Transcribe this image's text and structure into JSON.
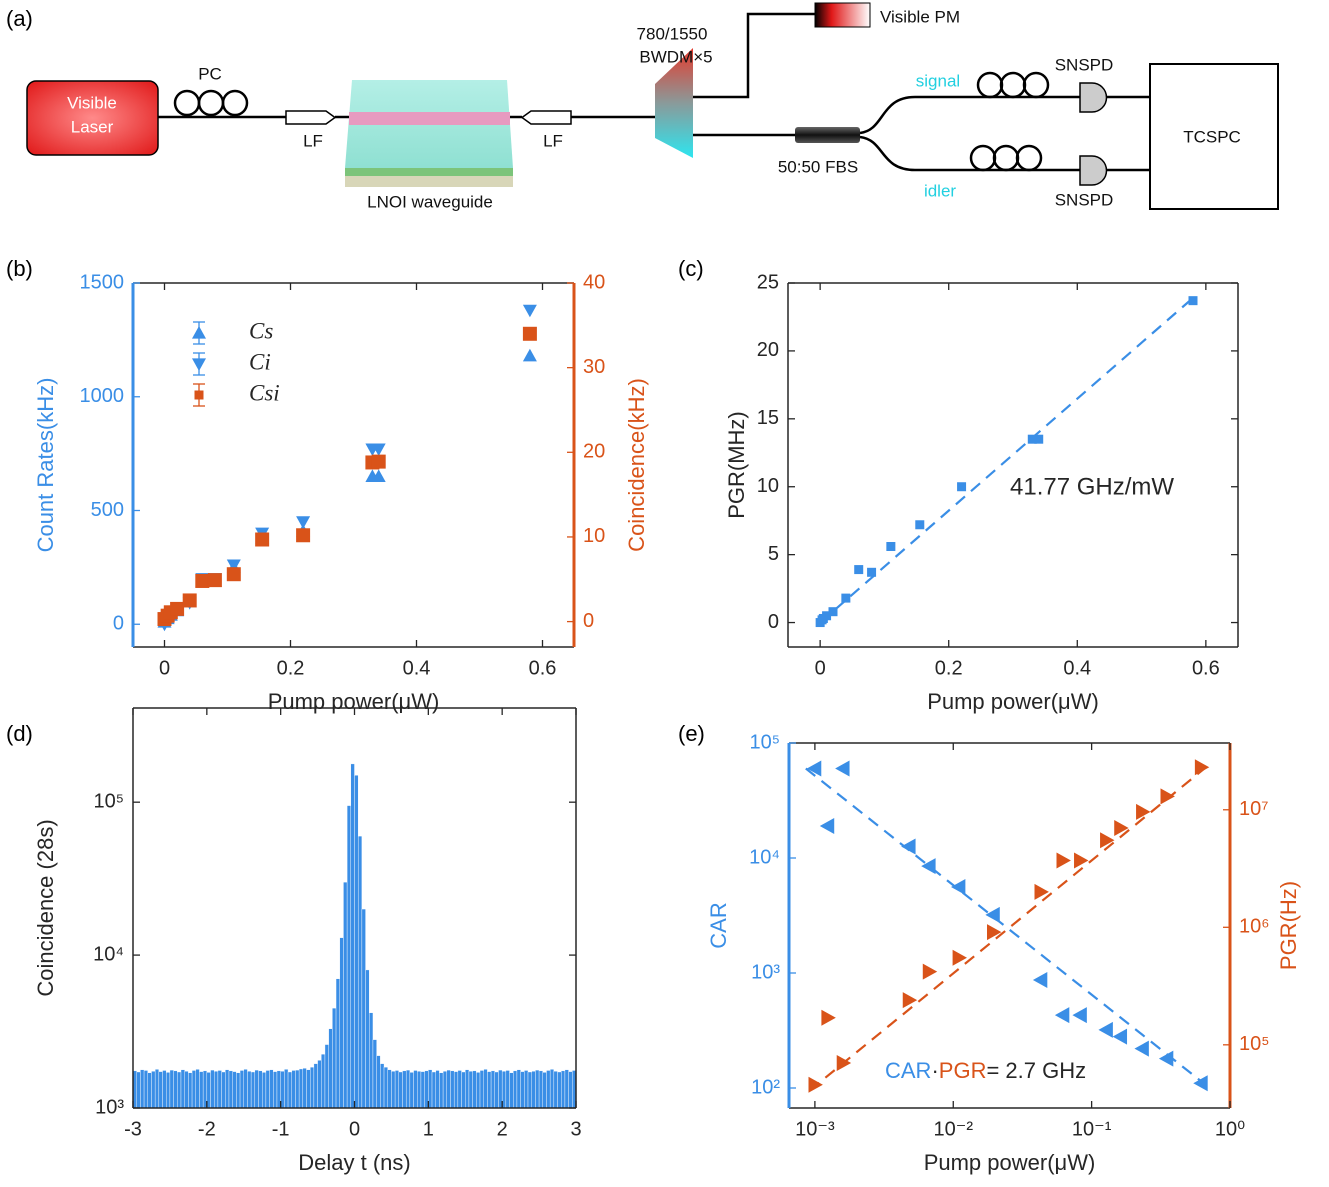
{
  "diagram": {
    "panel_label": "(a)",
    "laser": [
      "Visible",
      "Laser"
    ],
    "pc": "PC",
    "lf": [
      "LF",
      "LF"
    ],
    "waveguide": "LNOI waveguide",
    "bwdm": [
      "780/1550",
      "BWDM×5"
    ],
    "power_meter": "Visible PM",
    "splitter": "50:50 FBS",
    "arms": [
      "signal",
      "idler"
    ],
    "detectors": [
      "SNSPD",
      "SNSPD"
    ],
    "counter": "TCSPC"
  },
  "chart_data": [
    {
      "type": "scatter",
      "panel_label": "(b)",
      "xlabel": "Pump power(μW)",
      "ylabel": "Count Rates(kHz)",
      "y2label": "Coincidence(kHz)",
      "ycolor": "#3a8ee6",
      "y2color": "#d95319",
      "legend": "upper left",
      "xlim": [
        -0.05,
        0.65
      ],
      "xticks": [
        0,
        0.2,
        0.4,
        0.6
      ],
      "ylim": [
        -100,
        1500
      ],
      "yticks": [
        0,
        500,
        1000,
        1500
      ],
      "y2lim": [
        -3,
        40
      ],
      "y2ticks": [
        0,
        10,
        20,
        30,
        40
      ],
      "x": [
        0,
        0.005,
        0.01,
        0.02,
        0.04,
        0.06,
        0.08,
        0.11,
        0.155,
        0.22,
        0.33,
        0.34,
        0.58
      ],
      "series": [
        {
          "name": "Cs",
          "color": "#3a8ee6",
          "marker": "triangle-up",
          "values": [
            10,
            25,
            40,
            60,
            100,
            190,
            190,
            250,
            380,
            410,
            650,
            650,
            1180
          ]
        },
        {
          "name": "Ci",
          "color": "#3a8ee6",
          "marker": "triangle-down",
          "values": [
            0,
            30,
            45,
            65,
            95,
            200,
            200,
            260,
            400,
            450,
            770,
            770,
            1380
          ]
        },
        {
          "name": "Csi",
          "color": "#d95319",
          "marker": "square",
          "axis": "y2",
          "values": [
            0.3,
            0.7,
            1.1,
            1.5,
            2.5,
            4.8,
            4.9,
            5.6,
            9.7,
            10.2,
            18.8,
            18.9,
            34
          ]
        }
      ]
    },
    {
      "type": "scatter",
      "panel_label": "(c)",
      "xlabel": "Pump power(μW)",
      "ylabel": "PGR(MHz)",
      "annotation": "41.77 GHz/mW",
      "xlim": [
        -0.05,
        0.65
      ],
      "xticks": [
        0,
        0.2,
        0.4,
        0.6
      ],
      "ylim": [
        -1.8,
        25
      ],
      "yticks": [
        0,
        5,
        10,
        15,
        20,
        25
      ],
      "x": [
        0,
        0.003,
        0.005,
        0.01,
        0.02,
        0.04,
        0.06,
        0.08,
        0.11,
        0.155,
        0.22,
        0.33,
        0.34,
        0.58
      ],
      "series": [
        {
          "color": "#3a8ee6",
          "marker": "square",
          "values": [
            0,
            0.2,
            0.3,
            0.5,
            0.8,
            1.8,
            3.9,
            3.7,
            5.6,
            7.2,
            10,
            13.5,
            13.5,
            23.7
          ],
          "fit": {
            "x": [
              0,
              0.58
            ],
            "values": [
              0,
              23.9
            ]
          }
        }
      ]
    },
    {
      "type": "histogram",
      "panel_label": "(d)",
      "xlabel": "Delay t (ns)",
      "ylabel": "Coincidence (28s)",
      "color": "#3a8ee6",
      "ylog": true,
      "xlim": [
        -3,
        3
      ],
      "xticks": [
        -3,
        -2,
        -1,
        0,
        1,
        2,
        3
      ],
      "ylim": [
        1000,
        413000
      ],
      "yticks": [
        {
          "value": 1000,
          "label": "10³"
        },
        {
          "value": 10000,
          "label": "10⁴"
        },
        {
          "value": 100000,
          "label": "10⁵"
        }
      ],
      "bins": [
        -3,
        -2.95,
        -2.9,
        -2.85,
        -2.8,
        -2.75,
        -2.7,
        -2.65,
        -2.6,
        -2.55,
        -2.5,
        -2.45,
        -2.4,
        -2.35,
        -2.3,
        -2.25,
        -2.2,
        -2.15,
        -2.1,
        -2.05,
        -2,
        -1.95,
        -1.9,
        -1.85,
        -1.8,
        -1.75,
        -1.7,
        -1.65,
        -1.6,
        -1.55,
        -1.5,
        -1.45,
        -1.4,
        -1.35,
        -1.3,
        -1.25,
        -1.2,
        -1.15,
        -1.1,
        -1.05,
        -1,
        -0.95,
        -0.9,
        -0.85,
        -0.8,
        -0.75,
        -0.7,
        -0.65,
        -0.6,
        -0.55,
        -0.5,
        -0.45,
        -0.4,
        -0.35,
        -0.3,
        -0.25,
        -0.2,
        -0.15,
        -0.1,
        -0.05,
        0,
        0.05,
        0.1,
        0.15,
        0.2,
        0.25,
        0.3,
        0.35,
        0.4,
        0.45,
        0.5,
        0.55,
        0.6,
        0.65,
        0.7,
        0.75,
        0.8,
        0.85,
        0.9,
        0.95,
        1,
        1.05,
        1.1,
        1.15,
        1.2,
        1.25,
        1.3,
        1.35,
        1.4,
        1.45,
        1.5,
        1.55,
        1.6,
        1.65,
        1.7,
        1.75,
        1.8,
        1.85,
        1.9,
        1.95,
        2,
        2.05,
        2.1,
        2.15,
        2.2,
        2.25,
        2.3,
        2.35,
        2.4,
        2.45,
        2.5,
        2.55,
        2.6,
        2.65,
        2.7,
        2.75,
        2.8,
        2.85,
        2.9,
        2.95,
        3
      ],
      "values": [
        1750,
        1720,
        1780,
        1760,
        1700,
        1740,
        1790,
        1730,
        1760,
        1710,
        1770,
        1750,
        1720,
        1780,
        1740,
        1700,
        1760,
        1790,
        1730,
        1750,
        1710,
        1770,
        1740,
        1760,
        1720,
        1780,
        1750,
        1730,
        1700,
        1760,
        1790,
        1740,
        1720,
        1770,
        1750,
        1710,
        1760,
        1780,
        1730,
        1750,
        1740,
        1790,
        1720,
        1760,
        1770,
        1800,
        1820,
        1780,
        1850,
        1950,
        2050,
        2250,
        2600,
        3300,
        4500,
        7000,
        13000,
        30000,
        95000,
        178000,
        150000,
        60000,
        20000,
        8000,
        4200,
        2800,
        2200,
        1950,
        1850,
        1780,
        1740,
        1760,
        1720,
        1750,
        1770,
        1710,
        1760,
        1740,
        1730,
        1750,
        1780,
        1720,
        1760,
        1700,
        1740,
        1770,
        1750,
        1730,
        1760,
        1720,
        1780,
        1740,
        1750,
        1710,
        1760,
        1790,
        1730,
        1750,
        1720,
        1770,
        1740,
        1760,
        1700,
        1750,
        1780,
        1730,
        1760,
        1720,
        1740,
        1770,
        1750,
        1710,
        1760,
        1790,
        1740,
        1720,
        1750,
        1780,
        1730,
        1760
      ]
    },
    {
      "type": "scatter",
      "panel_label": "(e)",
      "xlabel": "Pump power(μW)",
      "ylabel": "CAR",
      "y2label": "PGR(Hz)",
      "ycolor": "#3a8ee6",
      "y2color": "#d95319",
      "xlog": true,
      "ylog": true,
      "y2log": true,
      "annotation": [
        "CAR",
        "·",
        "PGR",
        "= 2.7 GHz"
      ],
      "xlim": [
        0.00065,
        1
      ],
      "xticks": [
        {
          "value": 0.001,
          "label": "10⁻³"
        },
        {
          "value": 0.01,
          "label": "10⁻²"
        },
        {
          "value": 0.1,
          "label": "10⁻¹"
        },
        {
          "value": 1,
          "label": "10⁰"
        }
      ],
      "ylim": [
        67,
        100000
      ],
      "yticks": [
        {
          "value": 100,
          "label": "10²"
        },
        {
          "value": 1000,
          "label": "10³"
        },
        {
          "value": 10000,
          "label": "10⁴"
        },
        {
          "value": 100000,
          "label": "10⁵"
        }
      ],
      "y2lim": [
        29000,
        37000000
      ],
      "y2ticks": [
        {
          "value": 100000,
          "label": "10⁵"
        },
        {
          "value": 1000000,
          "label": "10⁶"
        },
        {
          "value": 10000000,
          "label": "10⁷"
        }
      ],
      "x": [
        0.001,
        0.00124,
        0.0016,
        0.0048,
        0.0067,
        0.011,
        0.0195,
        0.043,
        0.062,
        0.083,
        0.128,
        0.162,
        0.233,
        0.35,
        0.62
      ],
      "series": [
        {
          "color": "#3a8ee6",
          "marker": "triangle-left",
          "values": [
            60000,
            19000,
            60000,
            12600,
            8500,
            5600,
            3200,
            870,
            430,
            430,
            320,
            280,
            220,
            180,
            110
          ],
          "fit": {
            "x": [
              0.00086,
              0.67
            ],
            "values": [
              60000,
              106
            ]
          }
        },
        {
          "color": "#d95319",
          "marker": "triangle-right",
          "axis": "y2",
          "values": [
            45700,
            170000,
            70000,
            240000,
            420000,
            550000,
            910000,
            2000000,
            3700000,
            3700000,
            5500000,
            7000000,
            9600000,
            13000000,
            23000000
          ],
          "fit": {
            "x": [
              0.00092,
              0.67
            ],
            "values": [
              41000,
              23000000
            ]
          }
        }
      ]
    }
  ]
}
